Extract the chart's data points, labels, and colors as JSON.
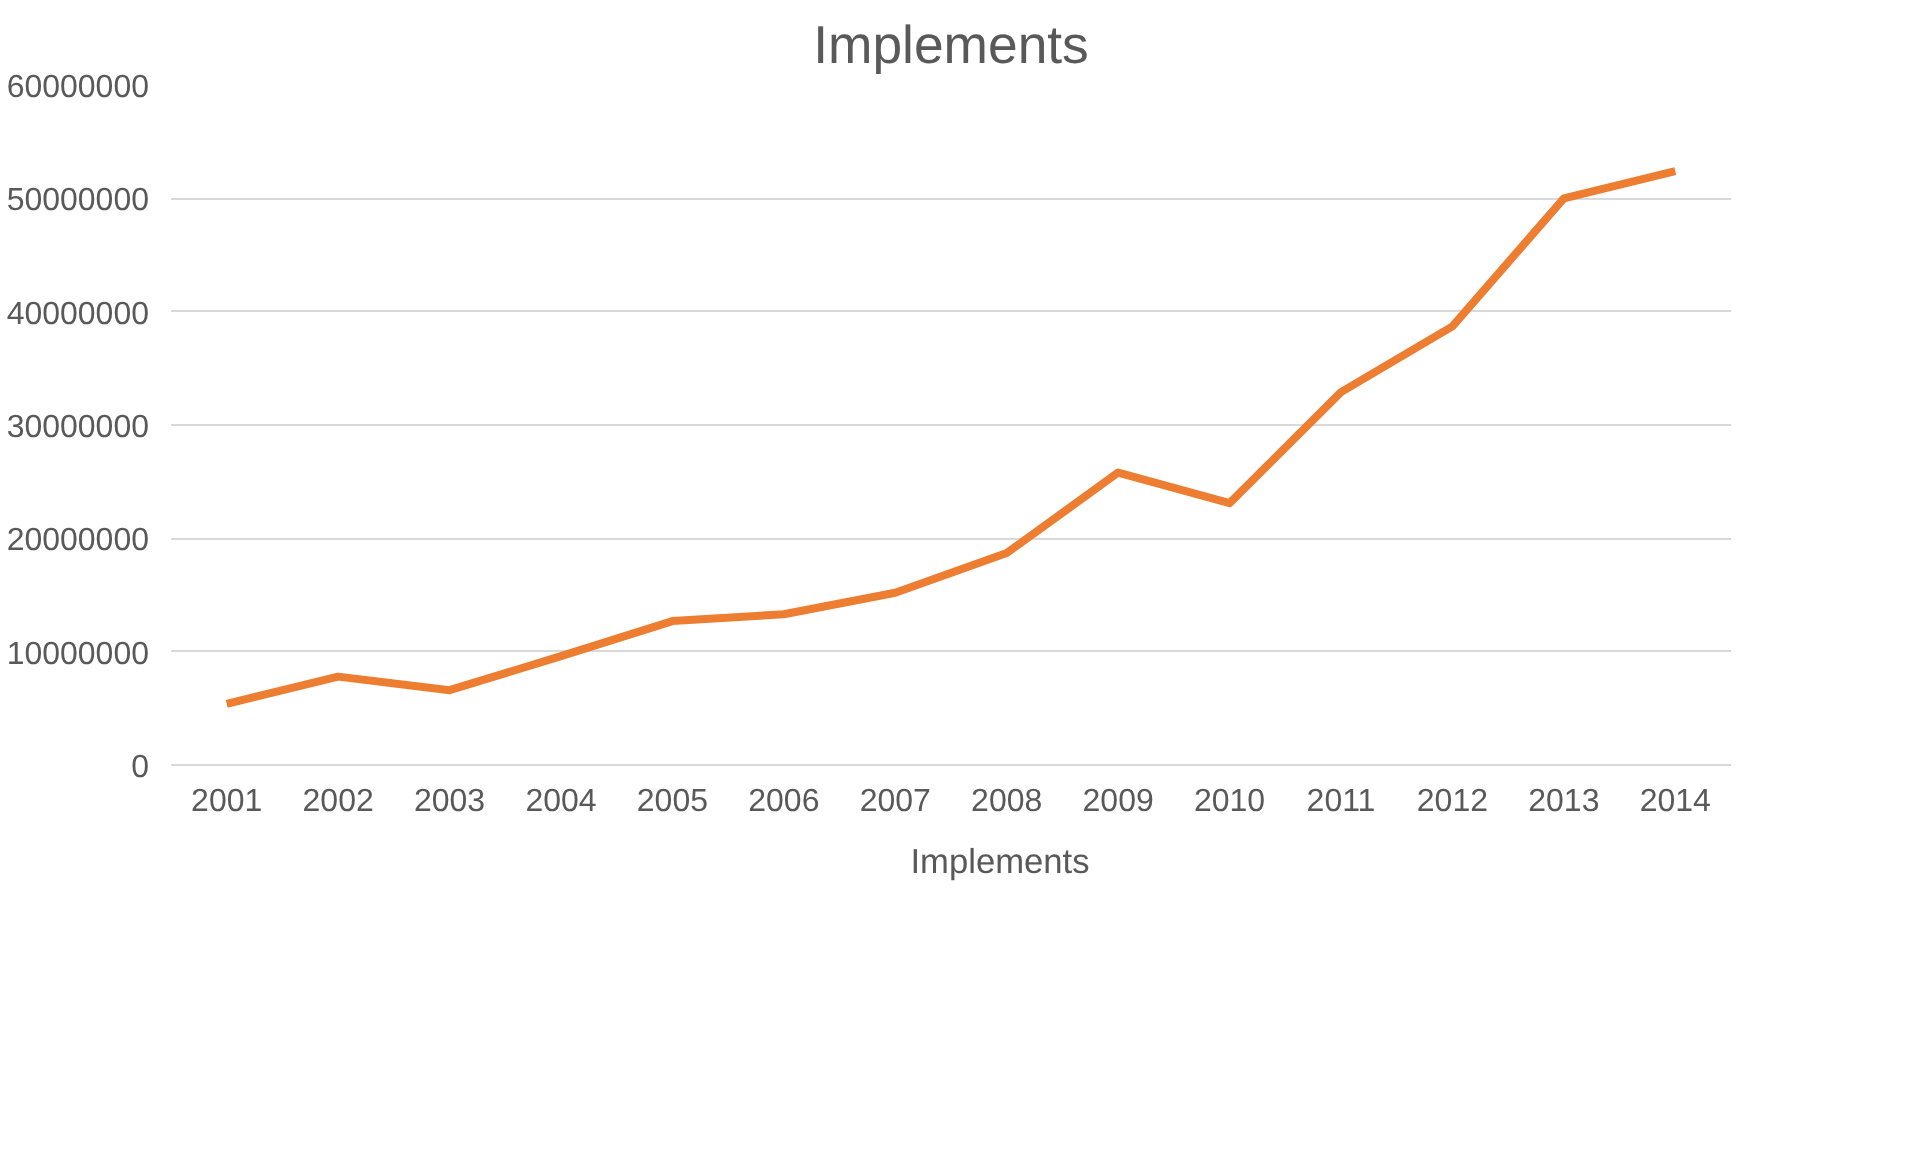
{
  "chart_data": {
    "type": "line",
    "title": "Implements",
    "categories": [
      "2001",
      "2002",
      "2003",
      "2004",
      "2005",
      "2006",
      "2007",
      "2008",
      "2009",
      "2010",
      "2011",
      "2012",
      "2013",
      "2014"
    ],
    "series": [
      {
        "name": "Implements",
        "color": "#ed7d31",
        "values": [
          5400000,
          7800000,
          6600000,
          9600000,
          12700000,
          13300000,
          15200000,
          18700000,
          25800000,
          23100000,
          32900000,
          38700000,
          50000000,
          52400000
        ]
      }
    ],
    "ylim": [
      0,
      60000000
    ],
    "yticks": [
      0,
      10000000,
      20000000,
      30000000,
      40000000,
      50000000,
      60000000
    ],
    "grid": "y",
    "legend": "bottom",
    "marker": "none",
    "line_style": "solid"
  }
}
